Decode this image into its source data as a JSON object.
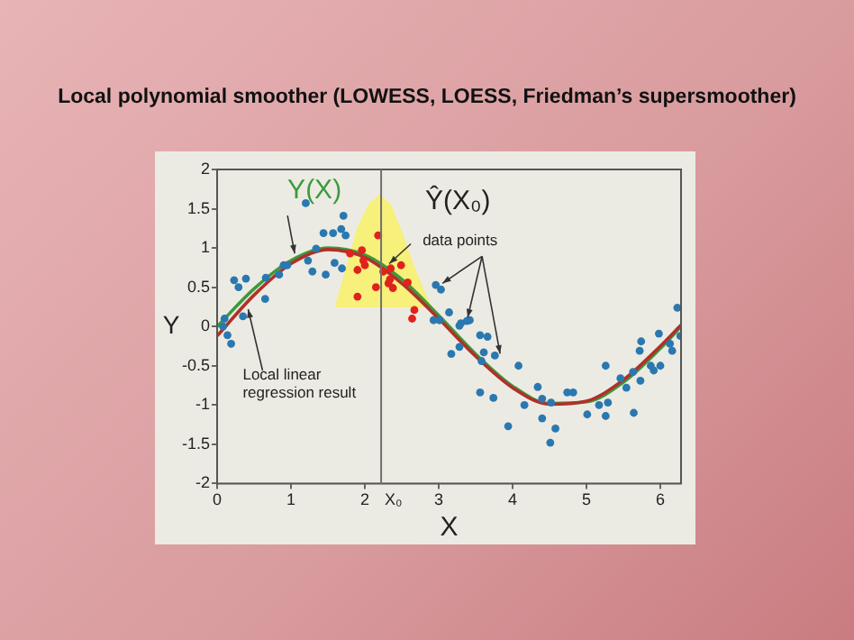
{
  "chart_data": {
    "type": "scatter",
    "title": "Local polynomial smoother  (LOWESS, LOESS, Friedman’s supersmoother)",
    "xlabel": "X",
    "ylabel": "Y",
    "xlim": [
      0,
      6.28
    ],
    "xticks": [
      0,
      1,
      2,
      3,
      4,
      5,
      6
    ],
    "ylim": [
      -2,
      2
    ],
    "yticks": [
      -2,
      -1.5,
      -1,
      -0.5,
      0,
      0.5,
      1,
      1.5,
      2
    ],
    "legend": false,
    "series": [
      {
        "type": "area",
        "color": "#f7f07a",
        "x": [
          1.6,
          1.75,
          1.9,
          2.05,
          2.2,
          2.35,
          2.5,
          2.65,
          2.8,
          2.9,
          1.6
        ],
        "values": [
          0.25,
          0.75,
          1.25,
          1.55,
          1.68,
          1.55,
          1.2,
          0.8,
          0.45,
          0.25,
          0.25
        ]
      },
      {
        "type": "line",
        "color": "#3c9a3c",
        "x": [
          0,
          0.5,
          1,
          1.5,
          2,
          2.5,
          3,
          3.5,
          4,
          4.5,
          5,
          5.5,
          6,
          6.28
        ],
        "values": [
          0,
          0.48,
          0.84,
          1.0,
          0.91,
          0.6,
          0.14,
          -0.35,
          -0.76,
          -0.98,
          -0.96,
          -0.71,
          -0.28,
          0
        ]
      },
      {
        "type": "line",
        "color": "#b0302a",
        "x": [
          0,
          0.5,
          1,
          1.5,
          2,
          2.5,
          3,
          3.5,
          4,
          4.5,
          5,
          5.5,
          6,
          6.28
        ],
        "values": [
          -0.12,
          0.4,
          0.8,
          0.98,
          0.88,
          0.55,
          0.1,
          -0.38,
          -0.78,
          -0.99,
          -0.95,
          -0.68,
          -0.25,
          0.02
        ]
      },
      {
        "type": "scatter",
        "color": "#2a78b0",
        "x": [
          0.1,
          0.08,
          0.14,
          0.19,
          0.23,
          0.29,
          0.39,
          0.35,
          0.65,
          0.66,
          0.84,
          0.9,
          0.95,
          1.2,
          1.23,
          1.29,
          1.34,
          1.44,
          1.47,
          1.57,
          1.59,
          1.68,
          1.71,
          1.74,
          1.69,
          2.96,
          3.03,
          2.93,
          3.01,
          3.14,
          3.28,
          3.3,
          3.17,
          3.38,
          3.42,
          3.28,
          3.56,
          3.66,
          3.56,
          3.58,
          3.61,
          3.76,
          3.74,
          3.94,
          4.08,
          4.16,
          4.34,
          4.4,
          4.4,
          4.52,
          4.51,
          4.58,
          4.74,
          4.82,
          5.01,
          5.17,
          5.26,
          5.29,
          5.26,
          5.46,
          5.54,
          5.63,
          5.64,
          5.72,
          5.74,
          5.73,
          5.87,
          5.91,
          5.98,
          6.0,
          6.13,
          6.16,
          6.23,
          6.27
        ],
        "values": [
          0.1,
          0.0,
          -0.11,
          -0.22,
          0.59,
          0.5,
          0.61,
          0.13,
          0.35,
          0.62,
          0.66,
          0.78,
          0.78,
          1.57,
          0.84,
          0.7,
          0.99,
          1.19,
          0.66,
          1.19,
          0.81,
          1.24,
          1.41,
          1.16,
          0.74,
          0.53,
          0.47,
          0.08,
          0.08,
          0.18,
          0.01,
          0.04,
          -0.35,
          0.07,
          0.08,
          -0.26,
          -0.11,
          -0.13,
          -0.84,
          -0.44,
          -0.33,
          -0.37,
          -0.91,
          -1.27,
          -0.5,
          -1.0,
          -0.77,
          -0.92,
          -1.17,
          -0.97,
          -1.48,
          -1.3,
          -0.84,
          -0.84,
          -1.12,
          -1.0,
          -0.5,
          -0.97,
          -1.14,
          -0.66,
          -0.78,
          -0.58,
          -1.1,
          -0.31,
          -0.19,
          -0.69,
          -0.5,
          -0.56,
          -0.09,
          -0.5,
          -0.22,
          -0.31,
          0.24,
          -0.12
        ]
      },
      {
        "type": "scatter",
        "color": "#e0221c",
        "x": [
          1.8,
          1.9,
          1.96,
          1.98,
          2.0,
          1.9,
          2.18,
          2.15,
          2.25,
          2.35,
          2.49,
          2.34,
          2.38,
          2.32,
          2.58,
          2.67,
          2.64
        ],
        "values": [
          0.93,
          0.72,
          0.97,
          0.84,
          0.78,
          0.38,
          1.16,
          0.5,
          0.7,
          0.74,
          0.78,
          0.6,
          0.49,
          0.55,
          0.56,
          0.21,
          0.1
        ]
      }
    ],
    "ref_lines": [
      {
        "axis": "x",
        "value": 2.22,
        "label": "X₀",
        "color": "#707070"
      }
    ],
    "annotations": [
      {
        "text": "Y(X)",
        "x": 1.05,
        "y": 0.93
      },
      {
        "text": "Ŷ(X₀)",
        "x": 2.33,
        "y": 0.8
      },
      {
        "text": "data points",
        "x": 3.05,
        "y": 0.55
      },
      {
        "text": "Local linear regression result",
        "x": 0.42,
        "y": 0.22
      }
    ]
  }
}
